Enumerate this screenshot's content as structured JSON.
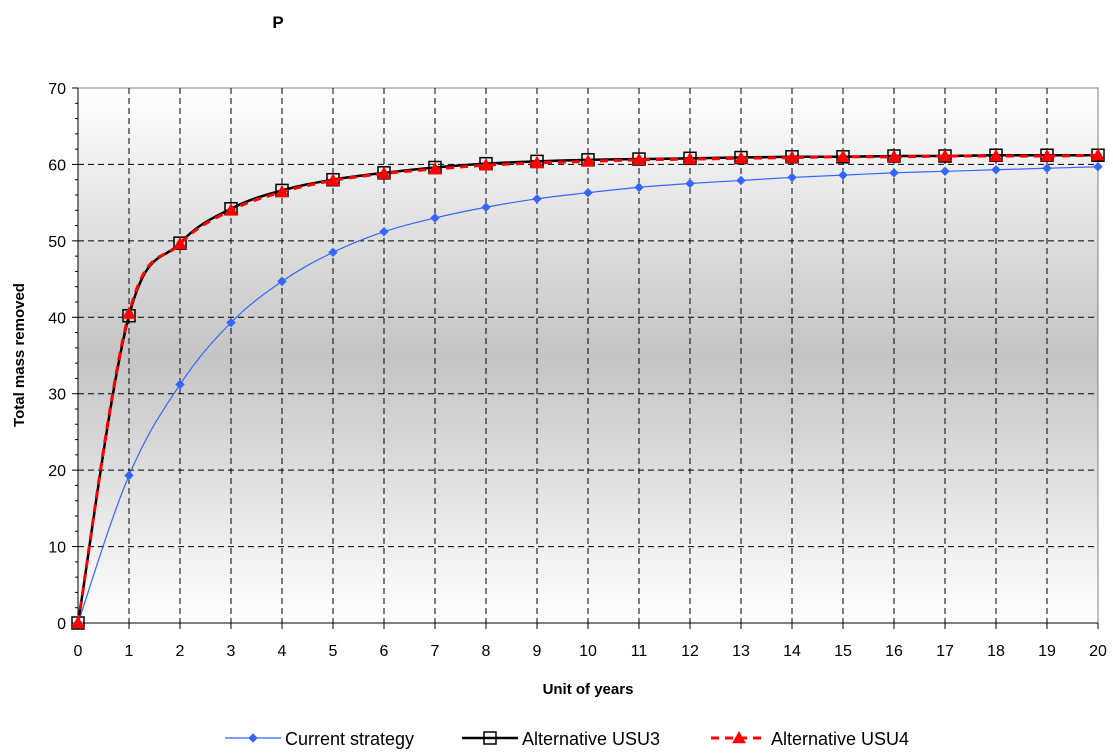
{
  "chart_data": {
    "type": "line",
    "title": "P",
    "xlabel": "Unit of years",
    "ylabel": "Total mass removed",
    "xlim": [
      0,
      20
    ],
    "ylim": [
      0,
      70
    ],
    "x_ticks": [
      "0",
      "1",
      "2",
      "3",
      "4",
      "5",
      "6",
      "7",
      "8",
      "9",
      "10",
      "11",
      "12",
      "13",
      "14",
      "15",
      "16",
      "17",
      "18",
      "19",
      "20"
    ],
    "y_ticks": [
      "0",
      "10",
      "20",
      "30",
      "40",
      "50",
      "60",
      "70"
    ],
    "grid": true,
    "grid_style": "dashed",
    "legend_position": "bottom",
    "background": "vertical gray gradient",
    "x": [
      0,
      1,
      2,
      3,
      4,
      5,
      6,
      7,
      8,
      9,
      10,
      11,
      12,
      13,
      14,
      15,
      16,
      17,
      18,
      19,
      20
    ],
    "series": [
      {
        "name": "Current strategy",
        "color": "#3366ff",
        "marker": "diamond",
        "line_style": "solid",
        "values": [
          0,
          19.3,
          31.2,
          39.3,
          44.7,
          48.5,
          51.2,
          53.0,
          54.4,
          55.5,
          56.3,
          57.0,
          57.5,
          57.9,
          58.3,
          58.6,
          58.9,
          59.1,
          59.3,
          59.5,
          59.7
        ]
      },
      {
        "name": "Alternative USU3",
        "color": "#000000",
        "marker": "open-square",
        "line_style": "solid",
        "values": [
          0,
          40.2,
          49.7,
          54.2,
          56.6,
          58.0,
          58.9,
          59.6,
          60.1,
          60.4,
          60.6,
          60.7,
          60.8,
          60.9,
          61.0,
          61.0,
          61.1,
          61.1,
          61.2,
          61.2,
          61.2
        ]
      },
      {
        "name": "Alternative USU4",
        "color": "#ff0000",
        "marker": "triangle",
        "line_style": "dashed",
        "values": [
          0,
          40.5,
          49.6,
          54.0,
          56.4,
          57.9,
          58.8,
          59.4,
          59.9,
          60.2,
          60.4,
          60.6,
          60.7,
          60.8,
          60.9,
          61.0,
          61.0,
          61.1,
          61.1,
          61.1,
          61.2
        ]
      }
    ]
  }
}
